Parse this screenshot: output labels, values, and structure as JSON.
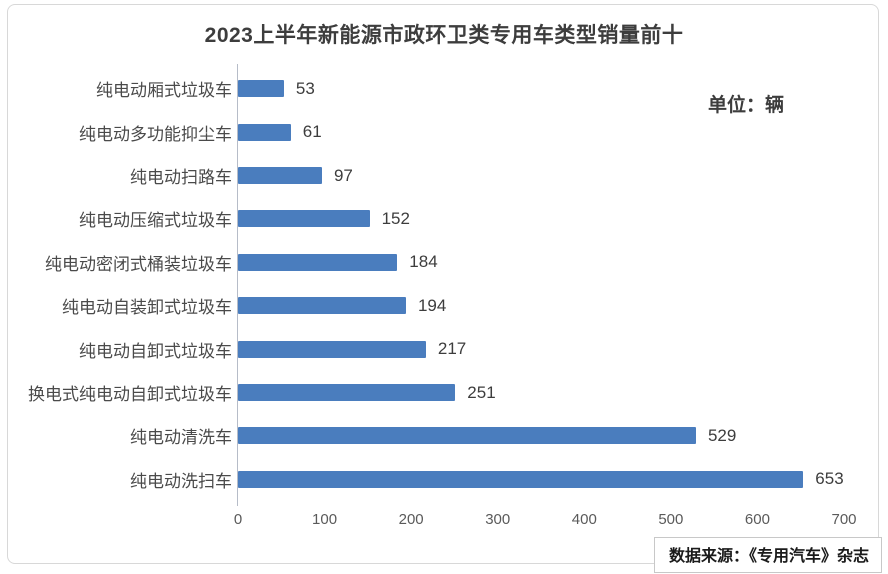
{
  "page": {
    "title": "2023上半年新能源市政环卫类专用车类型销量前十",
    "unit_label": "单位：辆",
    "source_label": "数据来源：《专用汽车》杂志"
  },
  "colors": {
    "bar": "#4A7DBE",
    "axis_line": "#B6BCC8",
    "title_text": "#3D3D3D",
    "category_text": "#4A4A4A",
    "value_text": "#3D3D3D",
    "tick_text": "#5A5A5A",
    "frame_border": "#D8D8D8"
  },
  "chart_data": {
    "type": "bar",
    "orientation": "horizontal",
    "title": "2023上半年新能源市政环卫类专用车类型销量前十",
    "unit": "单位：辆",
    "categories": [
      "纯电动厢式垃圾车",
      "纯电动多功能抑尘车",
      "纯电动扫路车",
      "纯电动压缩式垃圾车",
      "纯电动密闭式桶装垃圾车",
      "纯电动自装卸式垃圾车",
      "纯电动自卸式垃圾车",
      "换电式纯电动自卸式垃圾车",
      "纯电动清洗车",
      "纯电动洗扫车"
    ],
    "values": [
      53,
      61,
      97,
      152,
      184,
      194,
      217,
      251,
      529,
      653
    ],
    "xlabel": "",
    "ylabel": "",
    "xlim": [
      0,
      700
    ],
    "x_ticks": [
      0,
      100,
      200,
      300,
      400,
      500,
      600,
      700
    ],
    "grid": false,
    "data_labels": true,
    "legend": null,
    "source": "数据来源：《专用汽车》杂志"
  }
}
